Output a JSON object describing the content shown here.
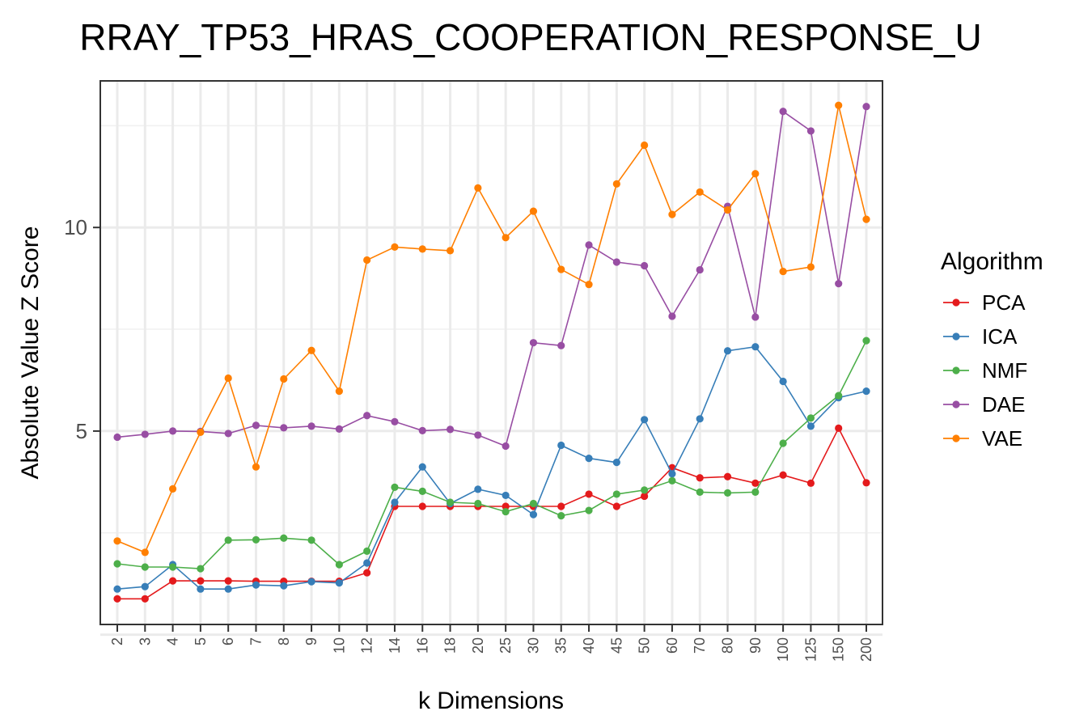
{
  "chart_data": {
    "type": "line",
    "title": "RRAY_TP53_HRAS_COOPERATION_RESPONSE_U",
    "xlabel": "k Dimensions",
    "ylabel": "Absolute Value Z Score",
    "categories": [
      "2",
      "3",
      "4",
      "5",
      "6",
      "7",
      "8",
      "9",
      "10",
      "12",
      "14",
      "16",
      "18",
      "20",
      "25",
      "30",
      "35",
      "40",
      "45",
      "50",
      "60",
      "70",
      "80",
      "90",
      "100",
      "125",
      "150",
      "200"
    ],
    "ylim": [
      0.25,
      13.6
    ],
    "yticks": [
      5,
      10
    ],
    "grid": true,
    "legend": {
      "title": "Algorithm",
      "position": "right"
    },
    "series": [
      {
        "name": "PCA",
        "color": "#E41A1C",
        "values": [
          0.88,
          0.88,
          1.32,
          1.32,
          1.32,
          1.31,
          1.31,
          1.31,
          1.31,
          1.52,
          3.15,
          3.15,
          3.15,
          3.15,
          3.15,
          3.15,
          3.15,
          3.45,
          3.15,
          3.4,
          4.1,
          3.85,
          3.88,
          3.72,
          3.92,
          3.72,
          5.07,
          3.73
        ]
      },
      {
        "name": "ICA",
        "color": "#377EB8",
        "values": [
          1.12,
          1.18,
          1.72,
          1.12,
          1.12,
          1.22,
          1.2,
          1.3,
          1.27,
          1.76,
          3.25,
          4.12,
          3.22,
          3.57,
          3.42,
          2.95,
          4.65,
          4.33,
          4.23,
          5.28,
          3.95,
          5.3,
          6.97,
          7.07,
          6.22,
          5.12,
          5.82,
          5.98
        ]
      },
      {
        "name": "NMF",
        "color": "#4DAF4A",
        "values": [
          1.74,
          1.66,
          1.66,
          1.62,
          2.32,
          2.33,
          2.37,
          2.32,
          1.72,
          2.05,
          3.62,
          3.52,
          3.25,
          3.22,
          3.02,
          3.22,
          2.92,
          3.05,
          3.45,
          3.55,
          3.78,
          3.5,
          3.48,
          3.5,
          4.7,
          5.32,
          5.87,
          7.22
        ]
      },
      {
        "name": "DAE",
        "color": "#984EA3",
        "values": [
          4.85,
          4.92,
          5.0,
          4.99,
          4.94,
          5.14,
          5.08,
          5.12,
          5.05,
          5.38,
          5.23,
          5.01,
          5.04,
          4.9,
          4.63,
          7.17,
          7.1,
          9.57,
          9.15,
          9.06,
          7.82,
          8.96,
          10.52,
          7.8,
          12.85,
          12.37,
          8.62,
          12.97
        ]
      },
      {
        "name": "VAE",
        "color": "#FF7F00",
        "values": [
          2.3,
          2.02,
          3.58,
          4.97,
          6.3,
          4.12,
          6.28,
          6.98,
          5.98,
          9.2,
          9.52,
          9.47,
          9.43,
          10.97,
          9.75,
          10.4,
          8.97,
          8.6,
          11.07,
          12.02,
          10.32,
          10.87,
          10.43,
          11.32,
          8.92,
          9.03,
          13.0,
          10.2
        ]
      }
    ]
  }
}
